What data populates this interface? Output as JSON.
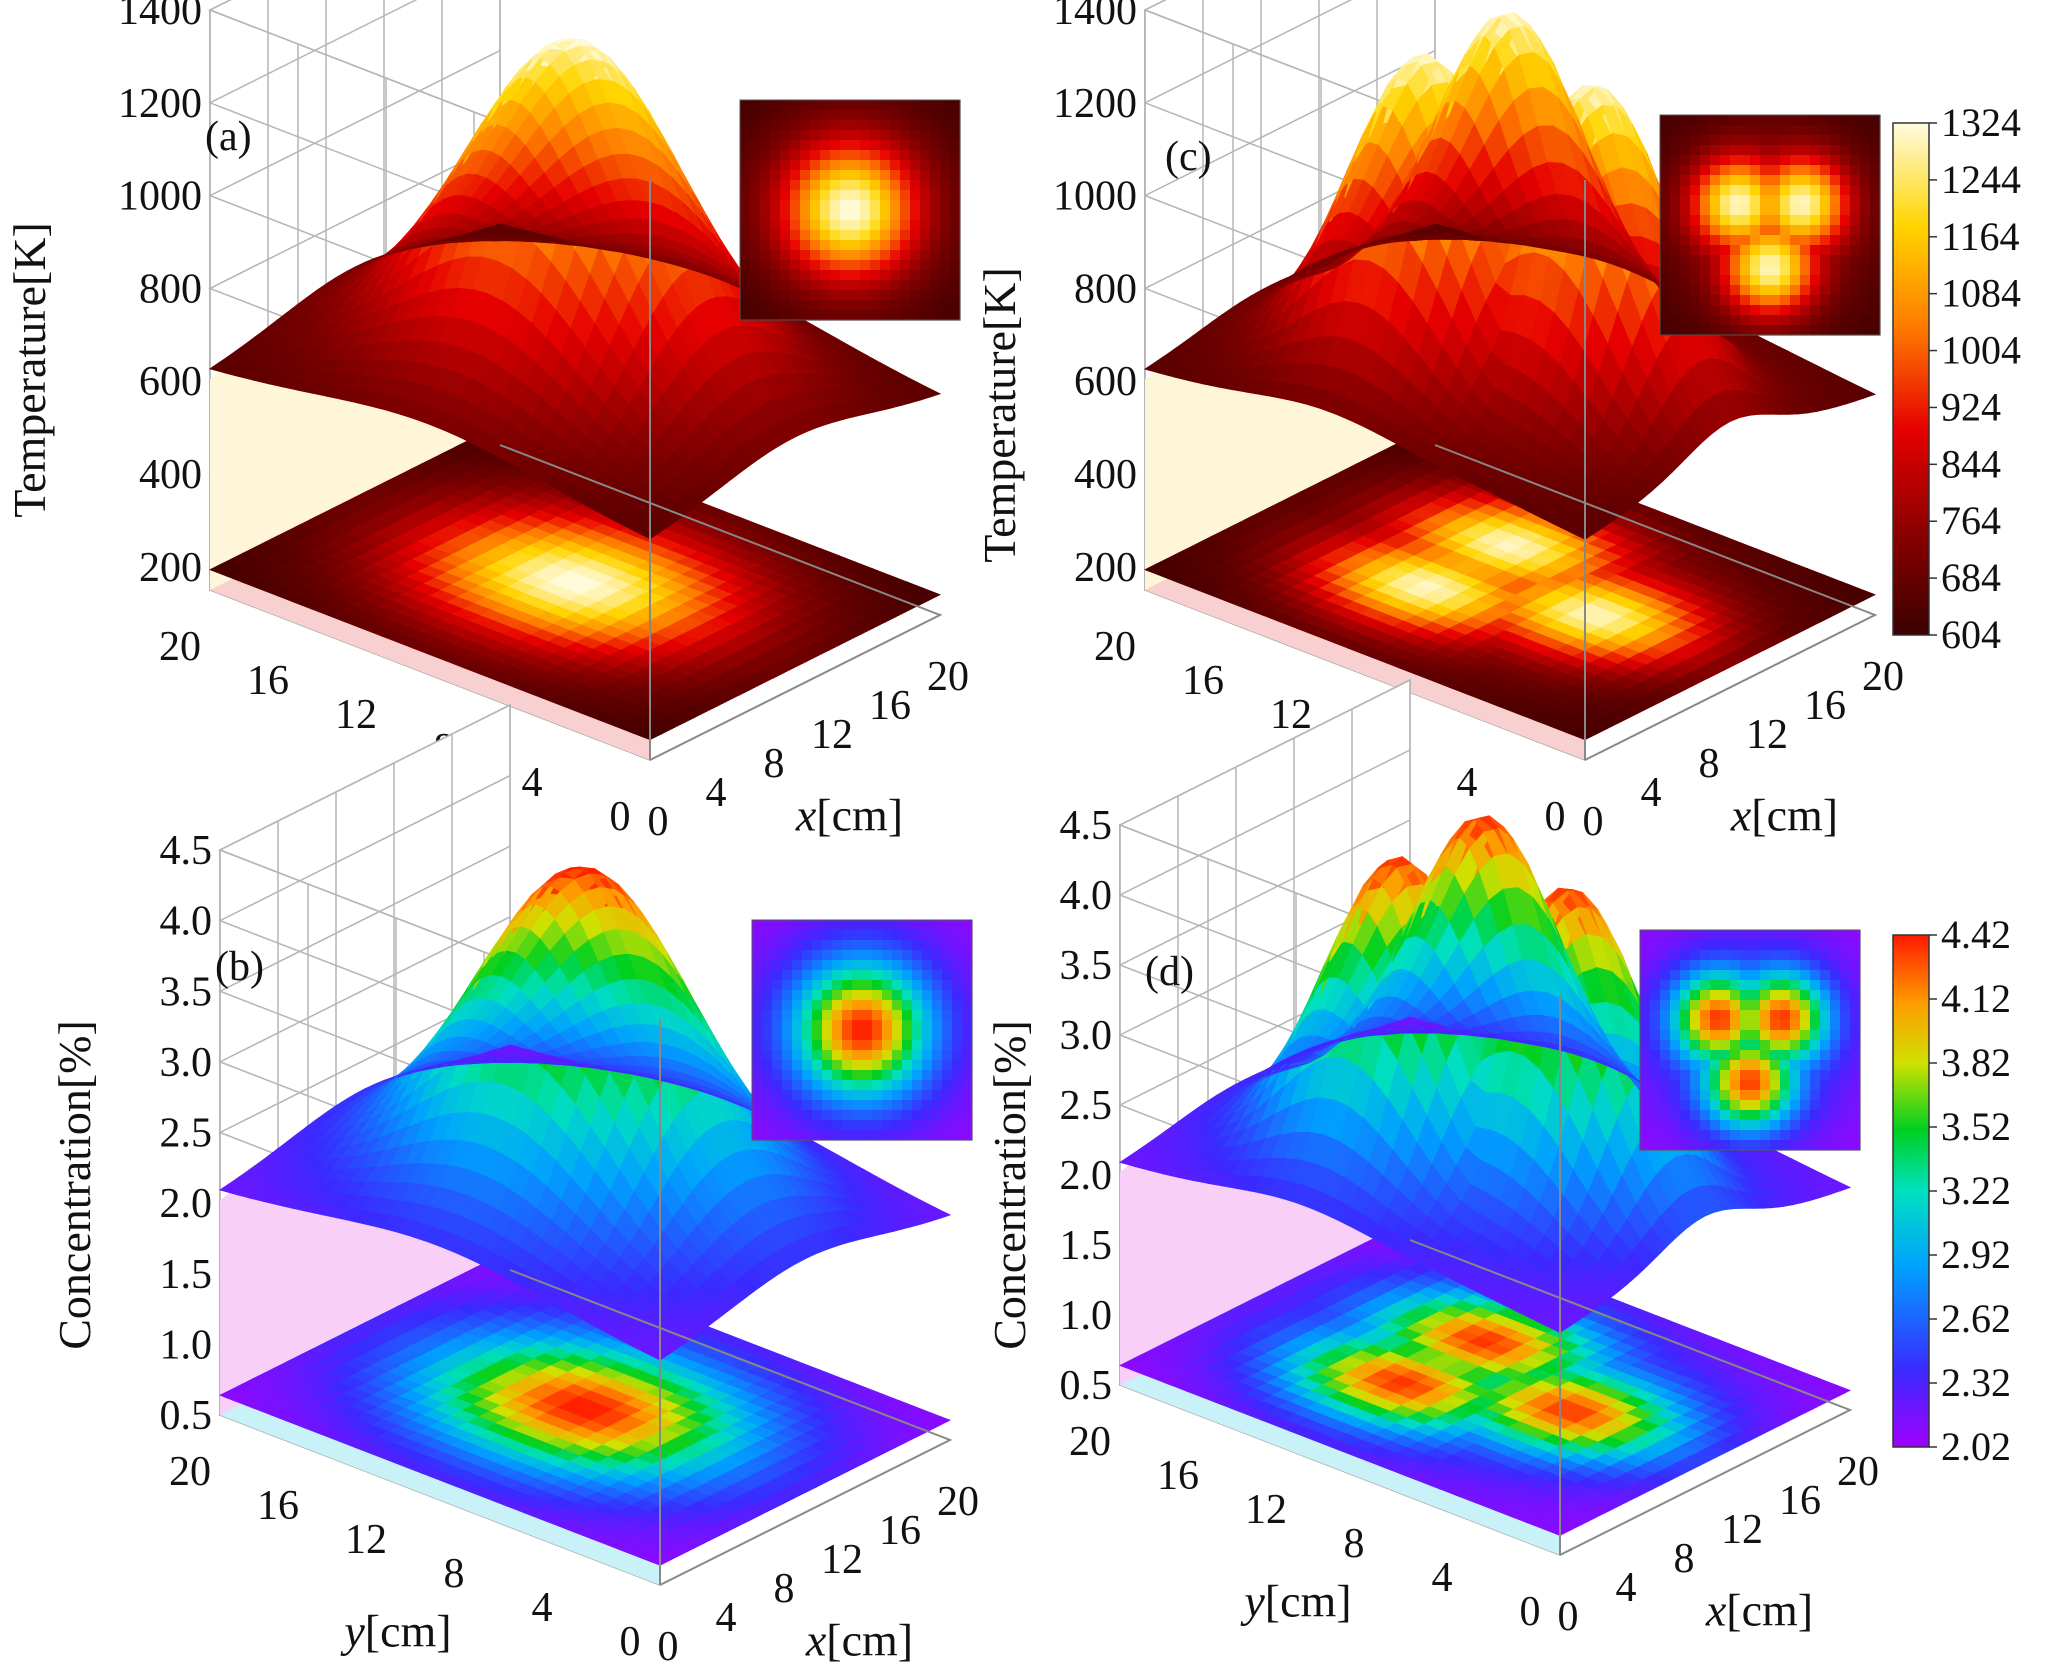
{
  "chart_data": [
    {
      "id": "a",
      "type": "surface3d",
      "panel_label": "(a)",
      "zlabel": "Temperature[K]",
      "zticks": [
        "200",
        "400",
        "600",
        "800",
        "1000",
        "1200",
        "1400"
      ],
      "zlim": [
        150,
        1400
      ],
      "xlabel_italic": "x",
      "xlabel_unit": "[cm]",
      "ylabel_italic": "y",
      "ylabel_unit": "[cm]",
      "xticks": [
        "0",
        "4",
        "8",
        "12",
        "16",
        "20"
      ],
      "yticks": [
        "20",
        "16",
        "12",
        "8",
        "4",
        "0"
      ],
      "xlim": [
        0,
        20
      ],
      "ylim": [
        0,
        20
      ],
      "colormap": "heat",
      "sources": [
        {
          "x": 10,
          "y": 10
        }
      ],
      "peak_value": 1360,
      "edge_value": 604,
      "inset": "top-right contour map"
    },
    {
      "id": "b",
      "type": "surface3d",
      "panel_label": "(b)",
      "zlabel": "Concentration[%]",
      "zticks": [
        "0.5",
        "1.0",
        "1.5",
        "2.0",
        "2.5",
        "3.0",
        "3.5",
        "4.0",
        "4.5"
      ],
      "zlim": [
        0.5,
        4.5
      ],
      "xlabel_italic": "x",
      "xlabel_unit": "[cm]",
      "ylabel_italic": "y",
      "ylabel_unit": "[cm]",
      "xticks": [
        "0",
        "4",
        "8",
        "12",
        "16",
        "20"
      ],
      "yticks": [
        "20",
        "16",
        "12",
        "8",
        "4",
        "0"
      ],
      "xlim": [
        0,
        20
      ],
      "ylim": [
        0,
        20
      ],
      "colormap": "rainbow",
      "sources": [
        {
          "x": 10,
          "y": 10
        }
      ],
      "peak_value": 4.45,
      "edge_value": 2.02,
      "inset": "top-right contour map"
    },
    {
      "id": "c",
      "type": "surface3d",
      "panel_label": "(c)",
      "zlabel": "Temperature[K]",
      "zticks": [
        "200",
        "400",
        "600",
        "800",
        "1000",
        "1200",
        "1400"
      ],
      "zlim": [
        150,
        1400
      ],
      "xlabel_italic": "x",
      "xlabel_unit": "[cm]",
      "ylabel_italic": "y",
      "ylabel_unit": "[cm]",
      "xticks": [
        "0",
        "4",
        "8",
        "12",
        "16",
        "20"
      ],
      "yticks": [
        "20",
        "16",
        "12",
        "8",
        "4",
        "0"
      ],
      "xlim": [
        0,
        20
      ],
      "ylim": [
        0,
        20
      ],
      "colormap": "heat",
      "sources": [
        {
          "x": 7,
          "y": 12
        },
        {
          "x": 13,
          "y": 12
        },
        {
          "x": 10,
          "y": 6
        }
      ],
      "peak_value": 1360,
      "edge_value": 604,
      "inset": "top-right contour map",
      "colorbar": {
        "ticks": [
          "1324",
          "1244",
          "1164",
          "1084",
          "1004",
          "924",
          "844",
          "764",
          "684",
          "604"
        ],
        "min": 604,
        "max": 1324
      }
    },
    {
      "id": "d",
      "type": "surface3d",
      "panel_label": "(d)",
      "zlabel": "Concentration[%]",
      "zticks": [
        "0.5",
        "1.0",
        "1.5",
        "2.0",
        "2.5",
        "3.0",
        "3.5",
        "4.0",
        "4.5"
      ],
      "zlim": [
        0.5,
        4.5
      ],
      "xlabel_italic": "x",
      "xlabel_unit": "[cm]",
      "ylabel_italic": "y",
      "ylabel_unit": "[cm]",
      "xticks": [
        "0",
        "4",
        "8",
        "12",
        "16",
        "20"
      ],
      "yticks": [
        "20",
        "16",
        "12",
        "8",
        "4",
        "0"
      ],
      "xlim": [
        0,
        20
      ],
      "ylim": [
        0,
        20
      ],
      "colormap": "rainbow",
      "sources": [
        {
          "x": 7,
          "y": 12
        },
        {
          "x": 13,
          "y": 12
        },
        {
          "x": 10,
          "y": 6
        }
      ],
      "peak_value": 4.45,
      "edge_value": 2.02,
      "inset": "top-right contour map",
      "colorbar": {
        "ticks": [
          "4.42",
          "4.12",
          "3.82",
          "3.52",
          "3.22",
          "2.92",
          "2.62",
          "2.32",
          "2.02"
        ],
        "min": 2.02,
        "max": 4.42
      }
    }
  ]
}
